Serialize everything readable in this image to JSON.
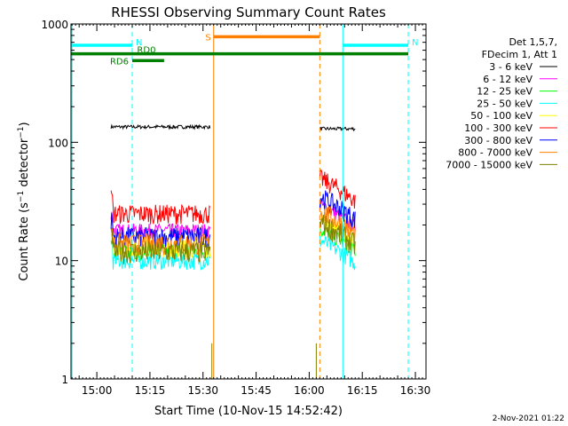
{
  "chart_data": {
    "type": "line",
    "title": "RHESSI Observing Summary Count Rates",
    "xlabel": "Start Time (10-Nov-15 14:52:42)",
    "ylabel_main": "Count Rate (s",
    "ylabel_sup1": "−1",
    "ylabel_mid": " detector",
    "ylabel_sup2": "−1",
    "ylabel_end": ")",
    "yscale": "log",
    "ylim": [
      1,
      1000
    ],
    "xlim": [
      "14:52:42",
      "16:33:00"
    ],
    "x_ticks": [
      "15:00",
      "15:15",
      "15:30",
      "15:45",
      "16:00",
      "16:15",
      "16:30"
    ],
    "y_ticks": [
      "1",
      "10",
      "100",
      "1000"
    ],
    "legend_header": [
      "Det 1,5,7,",
      "FDecim 1, Att 1"
    ],
    "legend_position": "right",
    "series": [
      {
        "name": "3 - 6 keV",
        "color": "#000000",
        "level": 135,
        "level2": 130
      },
      {
        "name": "6 - 12 keV",
        "color": "#ff00ff",
        "level": 18,
        "level2": 24
      },
      {
        "name": "12 - 25 keV",
        "color": "#00ff00",
        "level": 12,
        "level2": 15
      },
      {
        "name": "25 - 50 keV",
        "color": "#00ffff",
        "level": 10,
        "level2": 12
      },
      {
        "name": "50 - 100 keV",
        "color": "#ffff00",
        "level": 13,
        "level2": 18
      },
      {
        "name": "100 - 300 keV",
        "color": "#ff0000",
        "level": 25,
        "level2": 40
      },
      {
        "name": "300 - 800 keV",
        "color": "#0000ff",
        "level": 16,
        "level2": 28
      },
      {
        "name": "800 - 7000 keV",
        "color": "#ff8000",
        "level": 14,
        "level2": 21
      },
      {
        "name": "7000 - 15000 keV",
        "color": "#808000",
        "level": 12,
        "level2": 17
      }
    ],
    "intervals": [
      {
        "label": "N",
        "color": "#00ffff",
        "start": "14:52:42",
        "end": "15:10:00",
        "value": 660
      },
      {
        "label": "N",
        "color": "#00ffff",
        "start": "16:09:30",
        "end": "16:28:00",
        "value": 660
      },
      {
        "label": "S",
        "color": "#ff8000",
        "start": "15:33:00",
        "end": "16:03:00",
        "value": 780
      },
      {
        "label": "RD0",
        "color": "#008000",
        "start": "14:52:42",
        "end": "16:28:00",
        "value": 560
      },
      {
        "label": "RD6",
        "color": "#008000",
        "start": "15:10:00",
        "end": "15:19:00",
        "value": 490
      }
    ],
    "vlines": [
      {
        "time": "14:53:00",
        "color": "#00ffff",
        "style": "solid"
      },
      {
        "time": "15:10:00",
        "color": "#00ffff",
        "style": "dashed"
      },
      {
        "time": "15:33:00",
        "color": "#ff8000",
        "style": "solid"
      },
      {
        "time": "16:03:00",
        "color": "#ff8000",
        "style": "dashed"
      },
      {
        "time": "16:09:30",
        "color": "#00ffff",
        "style": "solid"
      },
      {
        "time": "16:28:00",
        "color": "#00ffff",
        "style": "dashed"
      }
    ],
    "segments": [
      {
        "start": "15:04:00",
        "end": "15:32:00"
      },
      {
        "start": "16:03:00",
        "end": "16:13:00"
      }
    ]
  },
  "footer": {
    "timestamp": "2-Nov-2021 01:22"
  }
}
